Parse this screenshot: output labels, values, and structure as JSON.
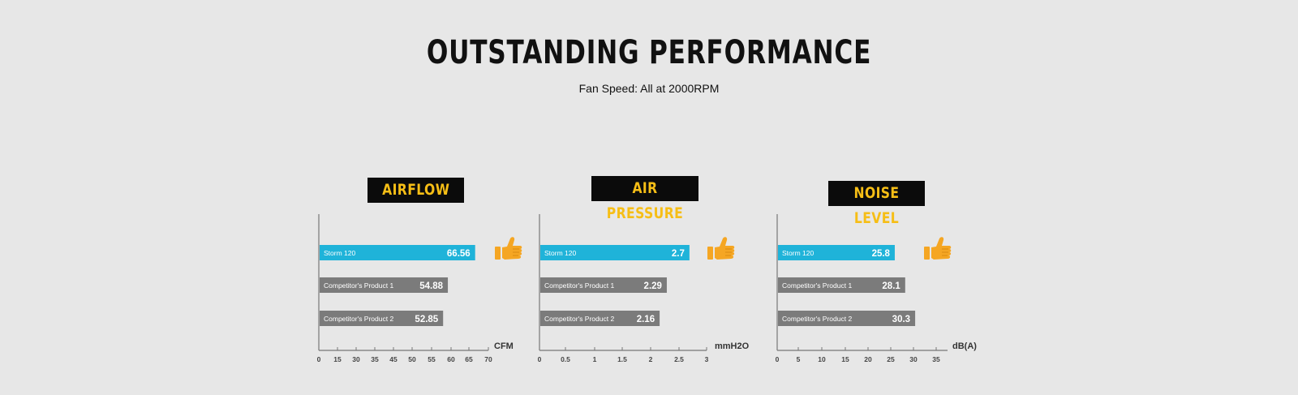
{
  "headline": "OUTSTANDING PERFORMANCE",
  "subline": "Fan Speed: All at 2000RPM",
  "colors": {
    "highlight_bar": "#1fb3d9",
    "competitor_bar": "#7b7b7b",
    "badge_bg": "#0b0b0b",
    "badge_text": "#f6be16",
    "thumb": "#f5a623"
  },
  "icon": "thumbs-up-icon",
  "chart_data": [
    {
      "type": "bar",
      "orientation": "horizontal",
      "title": "AIRFLOW",
      "xlabel": "CFM",
      "categories": [
        "Storm 120",
        "Competitor's Product 1",
        "Competitor's Product 2"
      ],
      "values": [
        66.56,
        54.88,
        52.85
      ],
      "value_labels": [
        "66.56",
        "54.88",
        "52.85"
      ],
      "xticks": [
        "0",
        "15",
        "30",
        "35",
        "45",
        "50",
        "55",
        "60",
        "65",
        "70"
      ],
      "xlim": [
        0,
        70
      ],
      "grid": false
    },
    {
      "type": "bar",
      "orientation": "horizontal",
      "title": "AIR PRESSURE",
      "xlabel": "mmH2O",
      "categories": [
        "Storm 120",
        "Competitor's Product 1",
        "Competitor's Product 2"
      ],
      "values": [
        2.7,
        2.29,
        2.16
      ],
      "value_labels": [
        "2.7",
        "2.29",
        "2.16"
      ],
      "xticks": [
        "0",
        "0.5",
        "1",
        "1.5",
        "2",
        "2.5",
        "3"
      ],
      "xlim": [
        0,
        3
      ],
      "grid": false
    },
    {
      "type": "bar",
      "orientation": "horizontal",
      "title": "NOISE LEVEL",
      "xlabel": "dB(A)",
      "categories": [
        "Storm 120",
        "Competitor's Product 1",
        "Competitor's Product 2"
      ],
      "values": [
        25.8,
        28.1,
        30.3
      ],
      "value_labels": [
        "25.8",
        "28.1",
        "30.3"
      ],
      "xticks": [
        "0",
        "5",
        "10",
        "15",
        "20",
        "25",
        "30",
        "35"
      ],
      "xlim": [
        0,
        35
      ],
      "grid": false
    }
  ]
}
